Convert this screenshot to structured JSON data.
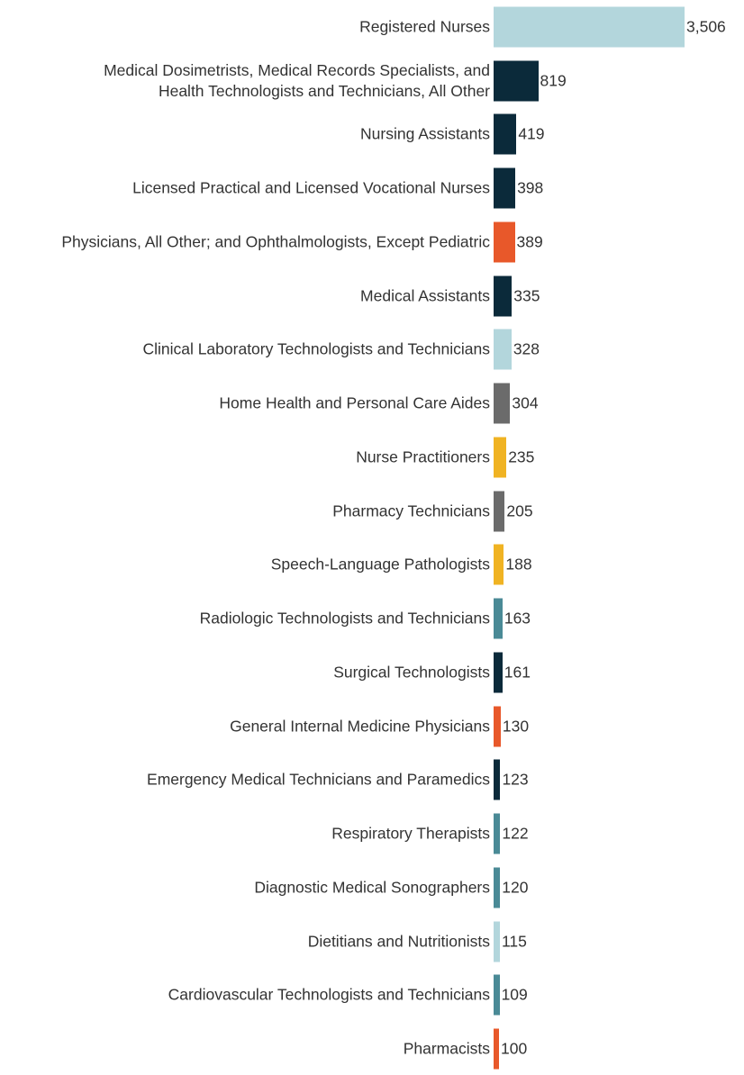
{
  "chart_data": {
    "type": "bar",
    "orientation": "horizontal",
    "categories": [
      "Registered Nurses",
      "Medical Dosimetrists, Medical Records Specialists, and Health Technologists and Technicians, All Other",
      "Nursing Assistants",
      "Licensed Practical and Licensed Vocational Nurses",
      "Physicians, All Other; and Ophthalmologists, Except Pediatric",
      "Medical Assistants",
      "Clinical Laboratory Technologists and Technicians",
      "Home Health and Personal Care Aides",
      "Nurse Practitioners",
      "Pharmacy Technicians",
      "Speech-Language Pathologists",
      "Radiologic Technologists and Technicians",
      "Surgical Technologists",
      "General Internal Medicine Physicians",
      "Emergency Medical Technicians and Paramedics",
      "Respiratory Therapists",
      "Diagnostic Medical Sonographers",
      "Dietitians and Nutritionists",
      "Cardiovascular Technologists and Technicians",
      "Pharmacists"
    ],
    "values": [
      3506,
      819,
      419,
      398,
      389,
      335,
      328,
      304,
      235,
      205,
      188,
      163,
      161,
      130,
      123,
      122,
      120,
      115,
      109,
      100
    ],
    "value_labels": [
      "3,506",
      "819",
      "419",
      "398",
      "389",
      "335",
      "328",
      "304",
      "235",
      "205",
      "188",
      "163",
      "161",
      "130",
      "123",
      "122",
      "120",
      "115",
      "109",
      "100"
    ],
    "colors": [
      "#b3d6dc",
      "#0b2a3a",
      "#0b2a3a",
      "#0b2a3a",
      "#e8582a",
      "#0b2a3a",
      "#b3d6dc",
      "#6b6b6b",
      "#f0b323",
      "#6b6b6b",
      "#f0b323",
      "#4a8a96",
      "#0b2a3a",
      "#e8582a",
      "#0b2a3a",
      "#4a8a96",
      "#4a8a96",
      "#b3d6dc",
      "#4a8a96",
      "#e8582a"
    ]
  }
}
